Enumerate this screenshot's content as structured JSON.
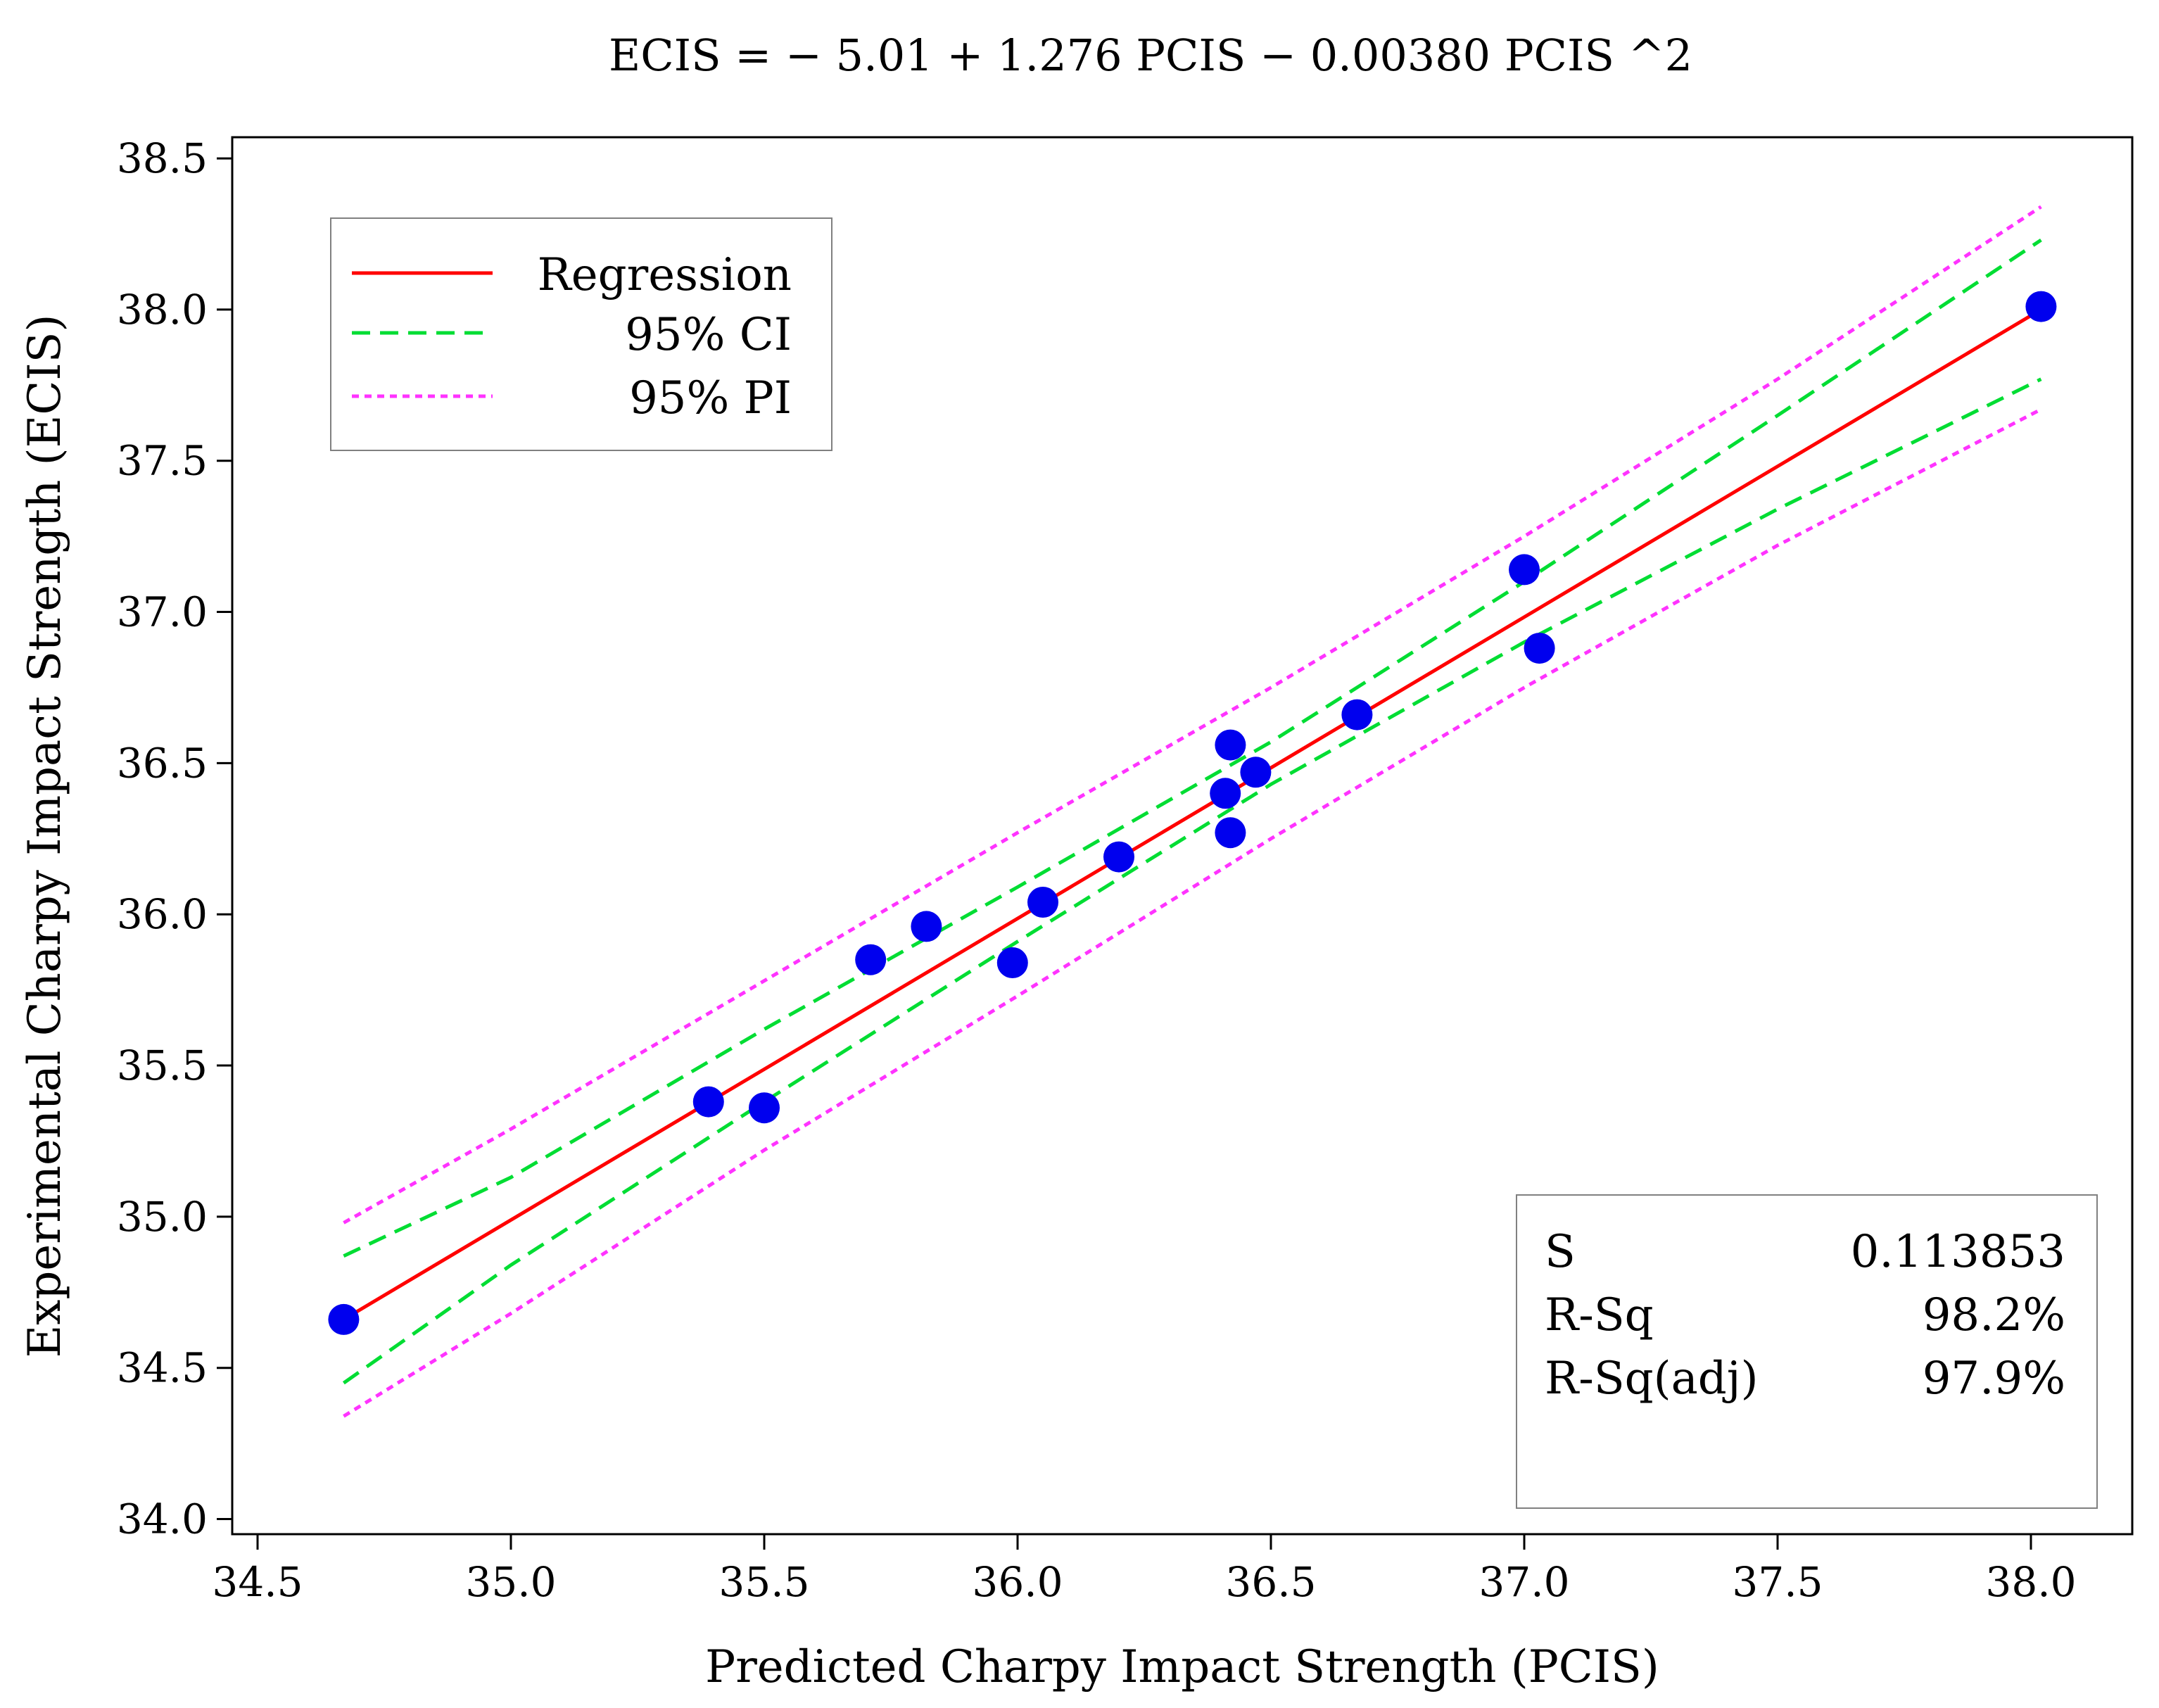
{
  "chart_data": {
    "type": "scatter",
    "title": "ECIS = − 5.01 + 1.276 PCIS − 0.00380 PCIS ^2",
    "xlabel": "Predicted Charpy Impact Strength (PCIS)",
    "ylabel": "Experimental Charpy Impact Strength (ECIS)",
    "xlim": [
      34.45,
      38.2
    ],
    "ylim": [
      33.95,
      38.57
    ],
    "x_ticks": [
      34.5,
      35.0,
      35.5,
      36.0,
      36.5,
      37.0,
      37.5,
      38.0
    ],
    "x_tick_labels": [
      "34.5",
      "35.0",
      "35.5",
      "36.0",
      "36.5",
      "37.0",
      "37.5",
      "38.0"
    ],
    "y_ticks": [
      34.0,
      34.5,
      35.0,
      35.5,
      36.0,
      36.5,
      37.0,
      37.5,
      38.0,
      38.5
    ],
    "y_tick_labels": [
      "34.0",
      "34.5",
      "35.0",
      "35.5",
      "36.0",
      "36.5",
      "37.0",
      "37.5",
      "38.0",
      "38.5"
    ],
    "grid": false,
    "points": {
      "name": "Observations",
      "color": "#0000ee",
      "x": [
        34.67,
        35.39,
        35.5,
        35.71,
        35.82,
        35.99,
        36.05,
        36.2,
        36.41,
        36.42,
        36.42,
        36.47,
        36.67,
        37.0,
        37.03,
        38.02
      ],
      "y": [
        34.66,
        35.38,
        35.36,
        35.85,
        35.96,
        35.84,
        36.04,
        36.19,
        36.4,
        36.56,
        36.27,
        36.47,
        36.66,
        37.14,
        36.88,
        38.01
      ]
    },
    "series": [
      {
        "name": "Regression",
        "color": "#ff0000",
        "style": "solid",
        "x": [
          34.67,
          38.02
        ],
        "y": [
          34.66,
          38.0
        ]
      },
      {
        "name": "95% CI upper",
        "color": "#00dd33",
        "style": "dashed",
        "x": [
          34.67,
          35.0,
          35.5,
          36.0,
          36.5,
          37.0,
          37.5,
          38.02
        ],
        "y": [
          34.87,
          35.13,
          35.62,
          36.09,
          36.57,
          37.1,
          37.65,
          38.23
        ]
      },
      {
        "name": "95% CI lower",
        "color": "#00dd33",
        "style": "dashed",
        "x": [
          34.67,
          35.0,
          35.5,
          36.0,
          36.5,
          37.0,
          37.5,
          38.02
        ],
        "y": [
          34.45,
          34.84,
          35.38,
          35.91,
          36.43,
          36.9,
          37.34,
          37.77
        ]
      },
      {
        "name": "95% PI upper",
        "color": "#ff33ff",
        "style": "dotted",
        "x": [
          34.67,
          35.0,
          35.5,
          36.0,
          36.5,
          37.0,
          37.5,
          38.02
        ],
        "y": [
          34.98,
          35.29,
          35.78,
          36.27,
          36.75,
          37.25,
          37.77,
          38.34
        ]
      },
      {
        "name": "95% PI lower",
        "color": "#ff33ff",
        "style": "dotted",
        "x": [
          34.67,
          35.0,
          35.5,
          36.0,
          36.5,
          37.0,
          37.5,
          38.02
        ],
        "y": [
          34.34,
          34.68,
          35.22,
          35.73,
          36.25,
          36.75,
          37.22,
          37.67
        ]
      }
    ],
    "legend": {
      "position": "top-left",
      "entries": [
        {
          "label": "Regression",
          "color": "#ff0000",
          "style": "solid"
        },
        {
          "label": "95% CI",
          "color": "#00dd33",
          "style": "dashed"
        },
        {
          "label": "95% PI",
          "color": "#ff33ff",
          "style": "dotted"
        }
      ]
    },
    "stats": {
      "position": "bottom-right",
      "rows": [
        {
          "label": "S",
          "value": "0.113853"
        },
        {
          "label": "R-Sq",
          "value": "98.2%"
        },
        {
          "label": "R-Sq(adj)",
          "value": "97.9%"
        }
      ]
    }
  }
}
